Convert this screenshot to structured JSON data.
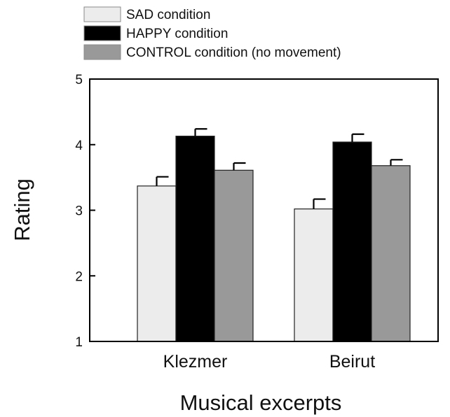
{
  "chart_data": {
    "type": "bar",
    "categories": [
      "Klezmer",
      "Beirut"
    ],
    "series": [
      {
        "name": "SAD condition",
        "values": [
          3.37,
          3.02
        ],
        "errors": [
          0.14,
          0.15
        ],
        "color": "#ececec"
      },
      {
        "name": "HAPPY condition",
        "values": [
          4.13,
          4.04
        ],
        "errors": [
          0.11,
          0.12
        ],
        "color": "#000000"
      },
      {
        "name": "CONTROL condition (no movement)",
        "values": [
          3.61,
          3.68
        ],
        "errors": [
          0.11,
          0.09
        ],
        "color": "#999999"
      }
    ],
    "xlabel": "Musical excerpts",
    "ylabel": "Rating",
    "ylim": [
      1,
      5
    ],
    "yticks": [
      "1",
      "2",
      "3",
      "4",
      "5"
    ],
    "grid": false,
    "legend_position": "top-left"
  }
}
